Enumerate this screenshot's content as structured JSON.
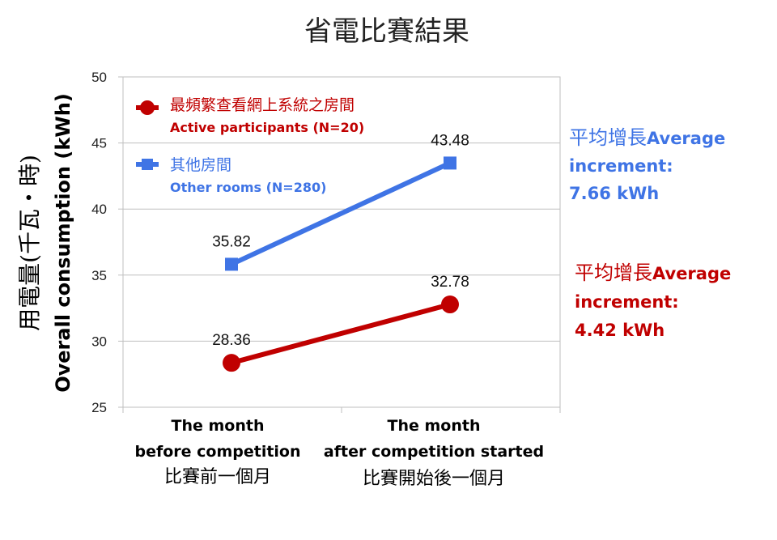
{
  "chart_data": {
    "type": "line",
    "title": "省電比賽結果",
    "ylabel_zh": "用電量(千瓦‧時)",
    "ylabel": "Overall consumption (kWh)",
    "ylim": [
      25,
      50
    ],
    "yticks": [
      "25",
      "30",
      "35",
      "40",
      "45",
      "50"
    ],
    "categories": [
      {
        "en1": "The month",
        "en2": "before competition",
        "zh": "比賽前一個月"
      },
      {
        "en1": "The month",
        "en2": "after competition started",
        "zh": "比賽開始後一個月"
      }
    ],
    "grid": true,
    "legend_position": "top-left",
    "series": [
      {
        "name_zh": "最頻繁查看網上系統之房間",
        "name": "Active participants (N=20)",
        "values": [
          28.36,
          32.78
        ],
        "labels": [
          "28.36",
          "32.78"
        ],
        "color": "#C00000",
        "marker": "circle"
      },
      {
        "name_zh": "其他房間",
        "name": "Other rooms (N=280)",
        "values": [
          35.82,
          43.48
        ],
        "labels": [
          "35.82",
          "43.48"
        ],
        "color": "#3F74E5",
        "marker": "square"
      }
    ],
    "annotations": [
      {
        "zh": "平均增長",
        "en": "Average",
        "line2": "increment:",
        "line3": "7.66 kWh",
        "color": "#3F74E5"
      },
      {
        "zh": "平均增長",
        "en": "Average",
        "line2": "increment:",
        "line3": "4.42 kWh",
        "color": "#C00000"
      }
    ]
  }
}
